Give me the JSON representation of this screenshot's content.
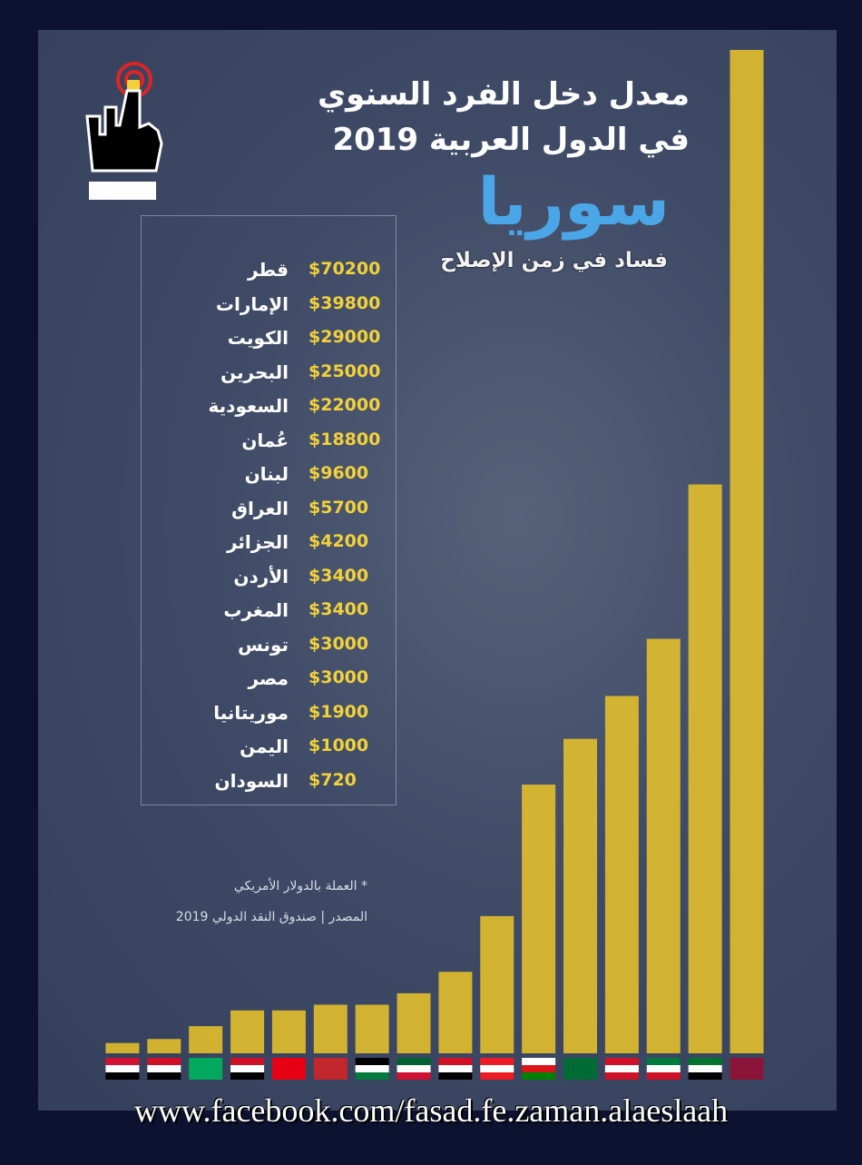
{
  "chart_data": {
    "type": "bar",
    "title": [
      "معدل دخل الفرد السنوي",
      "في الدول العربية 2019"
    ],
    "categories": [
      "قطر",
      "الإمارات",
      "الكويت",
      "البحرين",
      "السعودية",
      "عُمان",
      "لبنان",
      "العراق",
      "الجزائر",
      "الأردن",
      "المغرب",
      "تونس",
      "مصر",
      "موريتانيا",
      "اليمن",
      "السودان"
    ],
    "values": [
      70200,
      39800,
      29000,
      25000,
      22000,
      18800,
      9600,
      5700,
      4200,
      3400,
      3400,
      3000,
      3000,
      1900,
      1000,
      720
    ],
    "value_labels": [
      "$70200",
      "$39800",
      "$29000",
      "$25000",
      "$22000",
      "$18800",
      "$9600",
      "$5700",
      "$4200",
      "$3400",
      "$3400",
      "$3000",
      "$3000",
      "$1900",
      "$1000",
      "$720"
    ],
    "color": "#e6c22a",
    "notes": [
      "* العملة بالدولار الأمريكي",
      "المصدر  |  صندوق النقد الدولي 2019"
    ]
  },
  "branding": {
    "logo": "سوريا",
    "tagline": "فساد في زمن الإصلاح",
    "url": "www.facebook.com/fasad.fe.zaman.alaeslaah"
  }
}
